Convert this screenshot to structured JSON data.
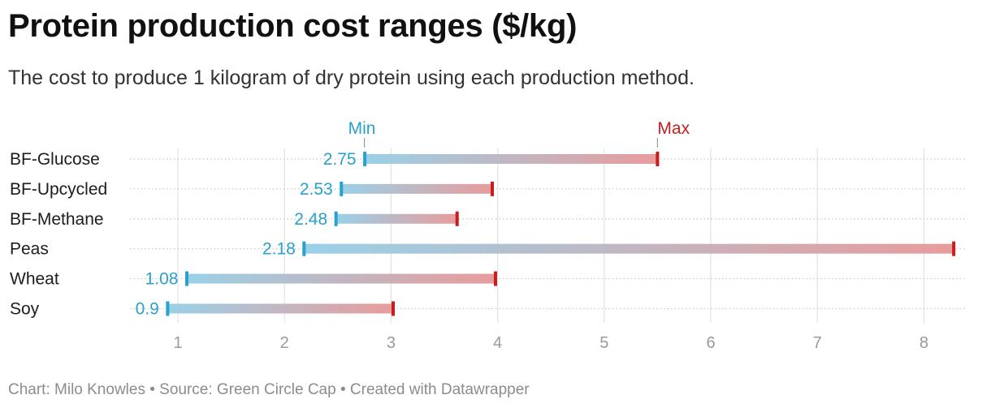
{
  "header": {
    "title": "Protein production cost ranges ($/kg)",
    "subtitle": "The cost to produce 1 kilogram of dry protein using each production method."
  },
  "footer": {
    "text": "Chart: Milo Knowles • Source: Green Circle Cap • Created with Datawrapper"
  },
  "chart_data": {
    "type": "range",
    "title": "Protein production cost ranges ($/kg)",
    "xlabel": "",
    "ylabel": "",
    "xlim": [
      0.7,
      8.3
    ],
    "xticks": [
      1,
      2,
      3,
      4,
      5,
      6,
      7,
      8
    ],
    "legend": {
      "min_label": "Min",
      "max_label": "Max",
      "anchor_row": 0
    },
    "colors": {
      "min": "#2aa0cc",
      "max": "#c71e1d",
      "bar_min": "#9ad1e8",
      "bar_max": "#e89c9c",
      "grid": "#e2e2e2",
      "tick": "#9a9a9a"
    },
    "series": [
      {
        "category": "BF-Glucose",
        "min": 2.75,
        "max": 5.5
      },
      {
        "category": "BF-Upcycled",
        "min": 2.53,
        "max": 3.95
      },
      {
        "category": "BF-Methane",
        "min": 2.48,
        "max": 3.62
      },
      {
        "category": "Peas",
        "min": 2.18,
        "max": 8.28
      },
      {
        "category": "Wheat",
        "min": 1.08,
        "max": 3.98
      },
      {
        "category": "Soy",
        "min": 0.9,
        "max": 3.02
      }
    ]
  }
}
